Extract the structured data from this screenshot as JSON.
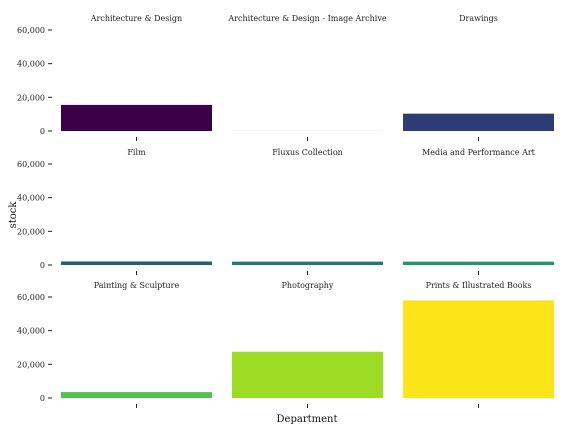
{
  "chart_data": {
    "type": "bar",
    "xlabel": "Department",
    "ylabel": "stock",
    "ylim": [
      0,
      60000
    ],
    "yticks": [
      0,
      20000,
      40000,
      60000
    ],
    "ytick_labels": [
      "0",
      "20,000",
      "40,000",
      "60,000"
    ],
    "facets": [
      {
        "name": "Architecture & Design",
        "value": 15500,
        "color": "#3b0047"
      },
      {
        "name": "Architecture & Design - Image Archive",
        "value": 150,
        "color": "#f3eef6"
      },
      {
        "name": "Drawings",
        "value": 10300,
        "color": "#2d3c72"
      },
      {
        "name": "Film",
        "value": 2100,
        "color": "#25606d"
      },
      {
        "name": "Fluxus Collection",
        "value": 2000,
        "color": "#1e7a73"
      },
      {
        "name": "Media and Performance Art",
        "value": 2000,
        "color": "#26966a"
      },
      {
        "name": "Painting & Sculpture",
        "value": 3500,
        "color": "#51c14f"
      },
      {
        "name": "Photography",
        "value": 27500,
        "color": "#9ddc24"
      },
      {
        "name": "Prints & Illustrated Books",
        "value": 58000,
        "color": "#fbe41a"
      }
    ]
  }
}
